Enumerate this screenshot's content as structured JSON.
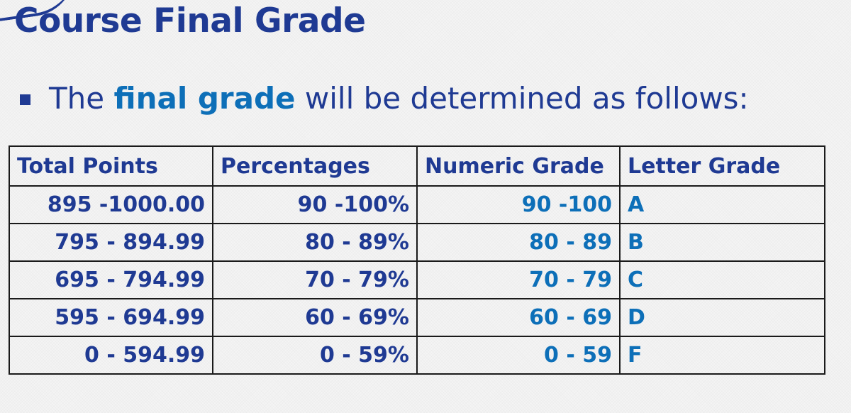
{
  "slide": {
    "title": "Course Final Grade",
    "bullet": {
      "before": "The ",
      "highlight": "final grade",
      "after": " will be determined as follows:"
    }
  },
  "table": {
    "headers": [
      "Total Points",
      "Percentages",
      "Numeric Grade",
      "Letter Grade"
    ],
    "rows": [
      [
        "895 -1000.00",
        "90 -100%",
        "90 -100",
        "A"
      ],
      [
        "795 - 894.99",
        "80 - 89%",
        "80 - 89",
        "B"
      ],
      [
        "695 - 794.99",
        "70 - 79%",
        "70 - 79",
        "C"
      ],
      [
        "595 - 694.99",
        "60 - 69%",
        "60 - 69",
        "D"
      ],
      [
        "0 - 594.99",
        "0 - 59%",
        "0 - 59",
        "F"
      ]
    ]
  },
  "colors": {
    "title": "#1f3a93",
    "highlight": "#0d6fb8",
    "border": "#1a1a1a"
  }
}
